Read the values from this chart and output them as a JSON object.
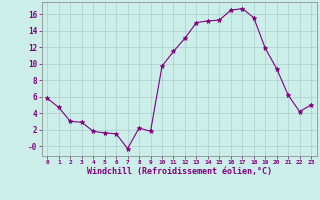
{
  "x": [
    0,
    1,
    2,
    3,
    4,
    5,
    6,
    7,
    8,
    9,
    10,
    11,
    12,
    13,
    14,
    15,
    16,
    17,
    18,
    19,
    20,
    21,
    22,
    23
  ],
  "y": [
    5.8,
    4.7,
    3.0,
    2.9,
    1.8,
    1.6,
    1.5,
    -0.3,
    2.2,
    1.8,
    9.7,
    11.5,
    13.1,
    15.0,
    15.2,
    15.3,
    16.5,
    16.7,
    15.6,
    11.9,
    9.4,
    6.2,
    4.2,
    5.0
  ],
  "line_color": "#800080",
  "marker": "*",
  "marker_color": "#800080",
  "background_color": "#cceee8",
  "grid_color": "#aacccc",
  "xlabel": "Windchill (Refroidissement éolien,°C)",
  "xlabel_color": "#800080",
  "tick_color": "#800080",
  "spine_color": "#808080",
  "ylabel_ticks": [
    16,
    14,
    12,
    10,
    8,
    6,
    4,
    2,
    0
  ],
  "ylabel_labels": [
    "16",
    "14",
    "12",
    "10",
    "8",
    "6",
    "4",
    "2",
    "-0"
  ],
  "xlim": [
    -0.5,
    23.5
  ],
  "ylim": [
    -1.2,
    17.5
  ],
  "figsize": [
    3.2,
    2.0
  ],
  "dpi": 100
}
